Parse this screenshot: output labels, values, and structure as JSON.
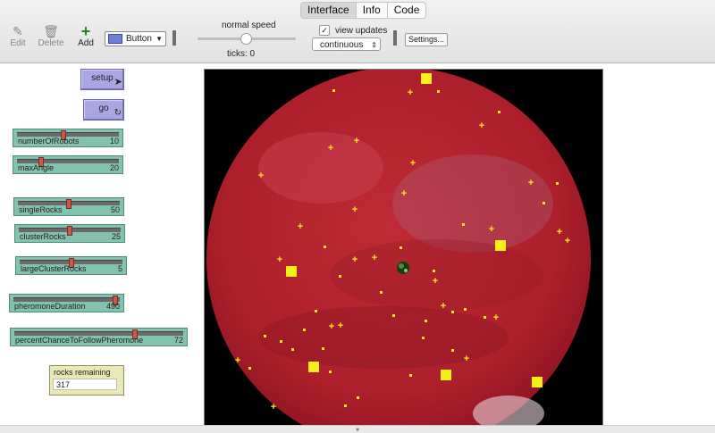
{
  "tabs": [
    {
      "label": "Interface",
      "active": true
    },
    {
      "label": "Info",
      "active": false
    },
    {
      "label": "Code",
      "active": false
    }
  ],
  "toolbar": {
    "edit_label": "Edit",
    "delete_label": "Delete",
    "add_label": "Add",
    "widget_type": "Button",
    "speed_label": "normal speed",
    "ticks_label": "ticks: 0",
    "view_updates_label": "view updates",
    "view_updates_checked": true,
    "update_mode": "continuous",
    "settings_label": "Settings..."
  },
  "buttons": {
    "setup_label": "setup",
    "go_label": "go"
  },
  "sliders": [
    {
      "name": "numberOfRobots",
      "value": "10",
      "fraction": 0.45
    },
    {
      "name": "maxAngle",
      "value": "20",
      "fraction": 0.22
    },
    {
      "name": "singleRocks",
      "value": "50",
      "fraction": 0.5
    },
    {
      "name": "clusterRocks",
      "value": "25",
      "fraction": 0.5
    },
    {
      "name": "largeClusterRocks",
      "value": "5",
      "fraction": 0.5
    },
    {
      "name": "pheromoneDuration",
      "value": "490",
      "fraction": 0.98
    },
    {
      "name": "percentChanceToFollowPheromone",
      "value": "72",
      "fraction": 0.72
    }
  ],
  "monitor": {
    "label": "rocks remaining",
    "value": "317"
  },
  "colors": {
    "planet": "#b3202e",
    "rock": "#f6f01a",
    "button": "#a9a6e3",
    "slider": "#84c2b0",
    "monitor": "#e8e9b6"
  }
}
